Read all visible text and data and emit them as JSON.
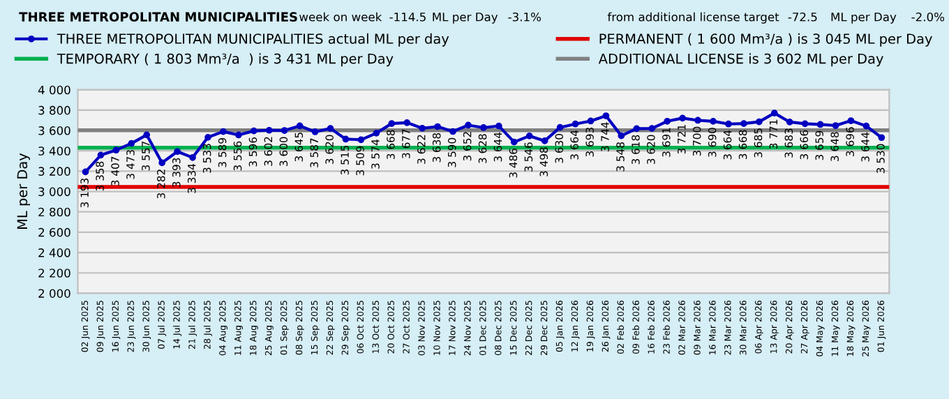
{
  "chart_data": {
    "type": "line",
    "title": "THREE METROPOLITAN MUNICIPALITIES",
    "ylabel": "ML per Day",
    "annotations": [
      "week on week",
      "-114.5",
      "ML per Day",
      "-3.1%",
      "from additional license target",
      "-72.5",
      "ML per Day",
      "-2.0%"
    ],
    "categories": [
      "02 Jun 2025",
      "09 Jun 2025",
      "16 Jun 2025",
      "23 Jun 2025",
      "30 Jun 2025",
      "07 Jul 2025",
      "14 Jul 2025",
      "21 Jul 2025",
      "28 Jul 2025",
      "04 Aug 2025",
      "11 Aug 2025",
      "18 Aug 2025",
      "25 Aug 2025",
      "01 Sep 2025",
      "08 Sep 2025",
      "15 Sep 2025",
      "22 Sep 2025",
      "29 Sep 2025",
      "06 Oct 2025",
      "13 Oct 2025",
      "20 Oct 2025",
      "27 Oct 2025",
      "03 Nov 2025",
      "10 Nov 2025",
      "17 Nov 2025",
      "24 Nov 2025",
      "01 Dec 2025",
      "08 Dec 2025",
      "15 Dec 2025",
      "22 Dec 2025",
      "29 Dec 2025",
      "05 Jan 2026",
      "12 Jan 2026",
      "19 Jan 2026",
      "26 Jan 2026",
      "02 Feb 2026",
      "09 Feb 2026",
      "16 Feb 2026",
      "23 Feb 2026",
      "02 Mar 2026",
      "09 Mar 2026",
      "16 Mar 2026",
      "23 Mar 2026",
      "30 Mar 2026",
      "06 Apr 2026",
      "13 Apr 2026",
      "20 Apr 2026",
      "27 Apr 2026",
      "04 May 2026",
      "11 May 2026",
      "18 May 2026",
      "25 May 2026",
      "01 Jun 2026"
    ],
    "series": [
      {
        "name": "THREE METROPOLITAN MUNICIPALITIES actual ML per day",
        "color": "#0000c0",
        "values": [
          3193,
          3358,
          3407,
          3473,
          3557,
          3282,
          3393,
          3334,
          3533,
          3589,
          3556,
          3596,
          3602,
          3600,
          3645,
          3587,
          3620,
          3515,
          3509,
          3574,
          3668,
          3677,
          3622,
          3638,
          3590,
          3652,
          3628,
          3644,
          3486,
          3546,
          3498,
          3630,
          3664,
          3693,
          3744,
          3548,
          3618,
          3620,
          3691,
          3721,
          3700,
          3690,
          3664,
          3668,
          3685,
          3771,
          3683,
          3666,
          3659,
          3648,
          3696,
          3644,
          3530
        ],
        "value_labels": [
          "3 193",
          "3 358",
          "3 407",
          "3 473",
          "3 557",
          "3 282",
          "3 393",
          "3 334",
          "3 533",
          "3 589",
          "3 556",
          "3 596",
          "3 602",
          "3 600",
          "3 645",
          "3 587",
          "3 620",
          "3 515",
          "3 509",
          "3 574",
          "3 668",
          "3 677",
          "3 622",
          "3 638",
          "3 590",
          "3 652",
          "3 628",
          "3 644",
          "3 486",
          "3 546",
          "3 498",
          "3 630",
          "3 664",
          "3 693",
          "3 744",
          "3 548",
          "3 618",
          "3 620",
          "3 691",
          "3 721",
          "3 700",
          "3 690",
          "3 664",
          "3 668",
          "3 685",
          "3 771",
          "3 683",
          "3 666",
          "3 659",
          "3 648",
          "3 696",
          "3 644",
          "3 530"
        ]
      }
    ],
    "ref_lines": [
      {
        "axis": "y",
        "value": 3431,
        "label": "TEMPORARY ( 1 803 Mm³/a  ) is 3 431 ML per Day",
        "color": "#00b050"
      },
      {
        "axis": "y",
        "value": 3045,
        "label": "PERMANENT ( 1 600 Mm³/a ) is 3 045 ML per Day",
        "color": "#e00000"
      },
      {
        "axis": "y",
        "value": 3602,
        "label": "ADDITIONAL LICENSE is 3 602 ML per Day",
        "color": "#808080"
      }
    ],
    "ylim": [
      2000,
      4000
    ],
    "yticks": [
      {
        "value": 2000,
        "label": "2 000"
      },
      {
        "value": 2200,
        "label": "2 200"
      },
      {
        "value": 2400,
        "label": "2 400"
      },
      {
        "value": 2600,
        "label": "2 600"
      },
      {
        "value": 2800,
        "label": "2 800"
      },
      {
        "value": 3000,
        "label": "3 000"
      },
      {
        "value": 3200,
        "label": "3 200"
      },
      {
        "value": 3400,
        "label": "3 400"
      },
      {
        "value": 3600,
        "label": "3 600"
      },
      {
        "value": 3800,
        "label": "3 800"
      },
      {
        "value": 4000,
        "label": "4 000"
      }
    ],
    "grid": "y",
    "legend": "top",
    "marker": "circle",
    "line_style": "solid"
  }
}
